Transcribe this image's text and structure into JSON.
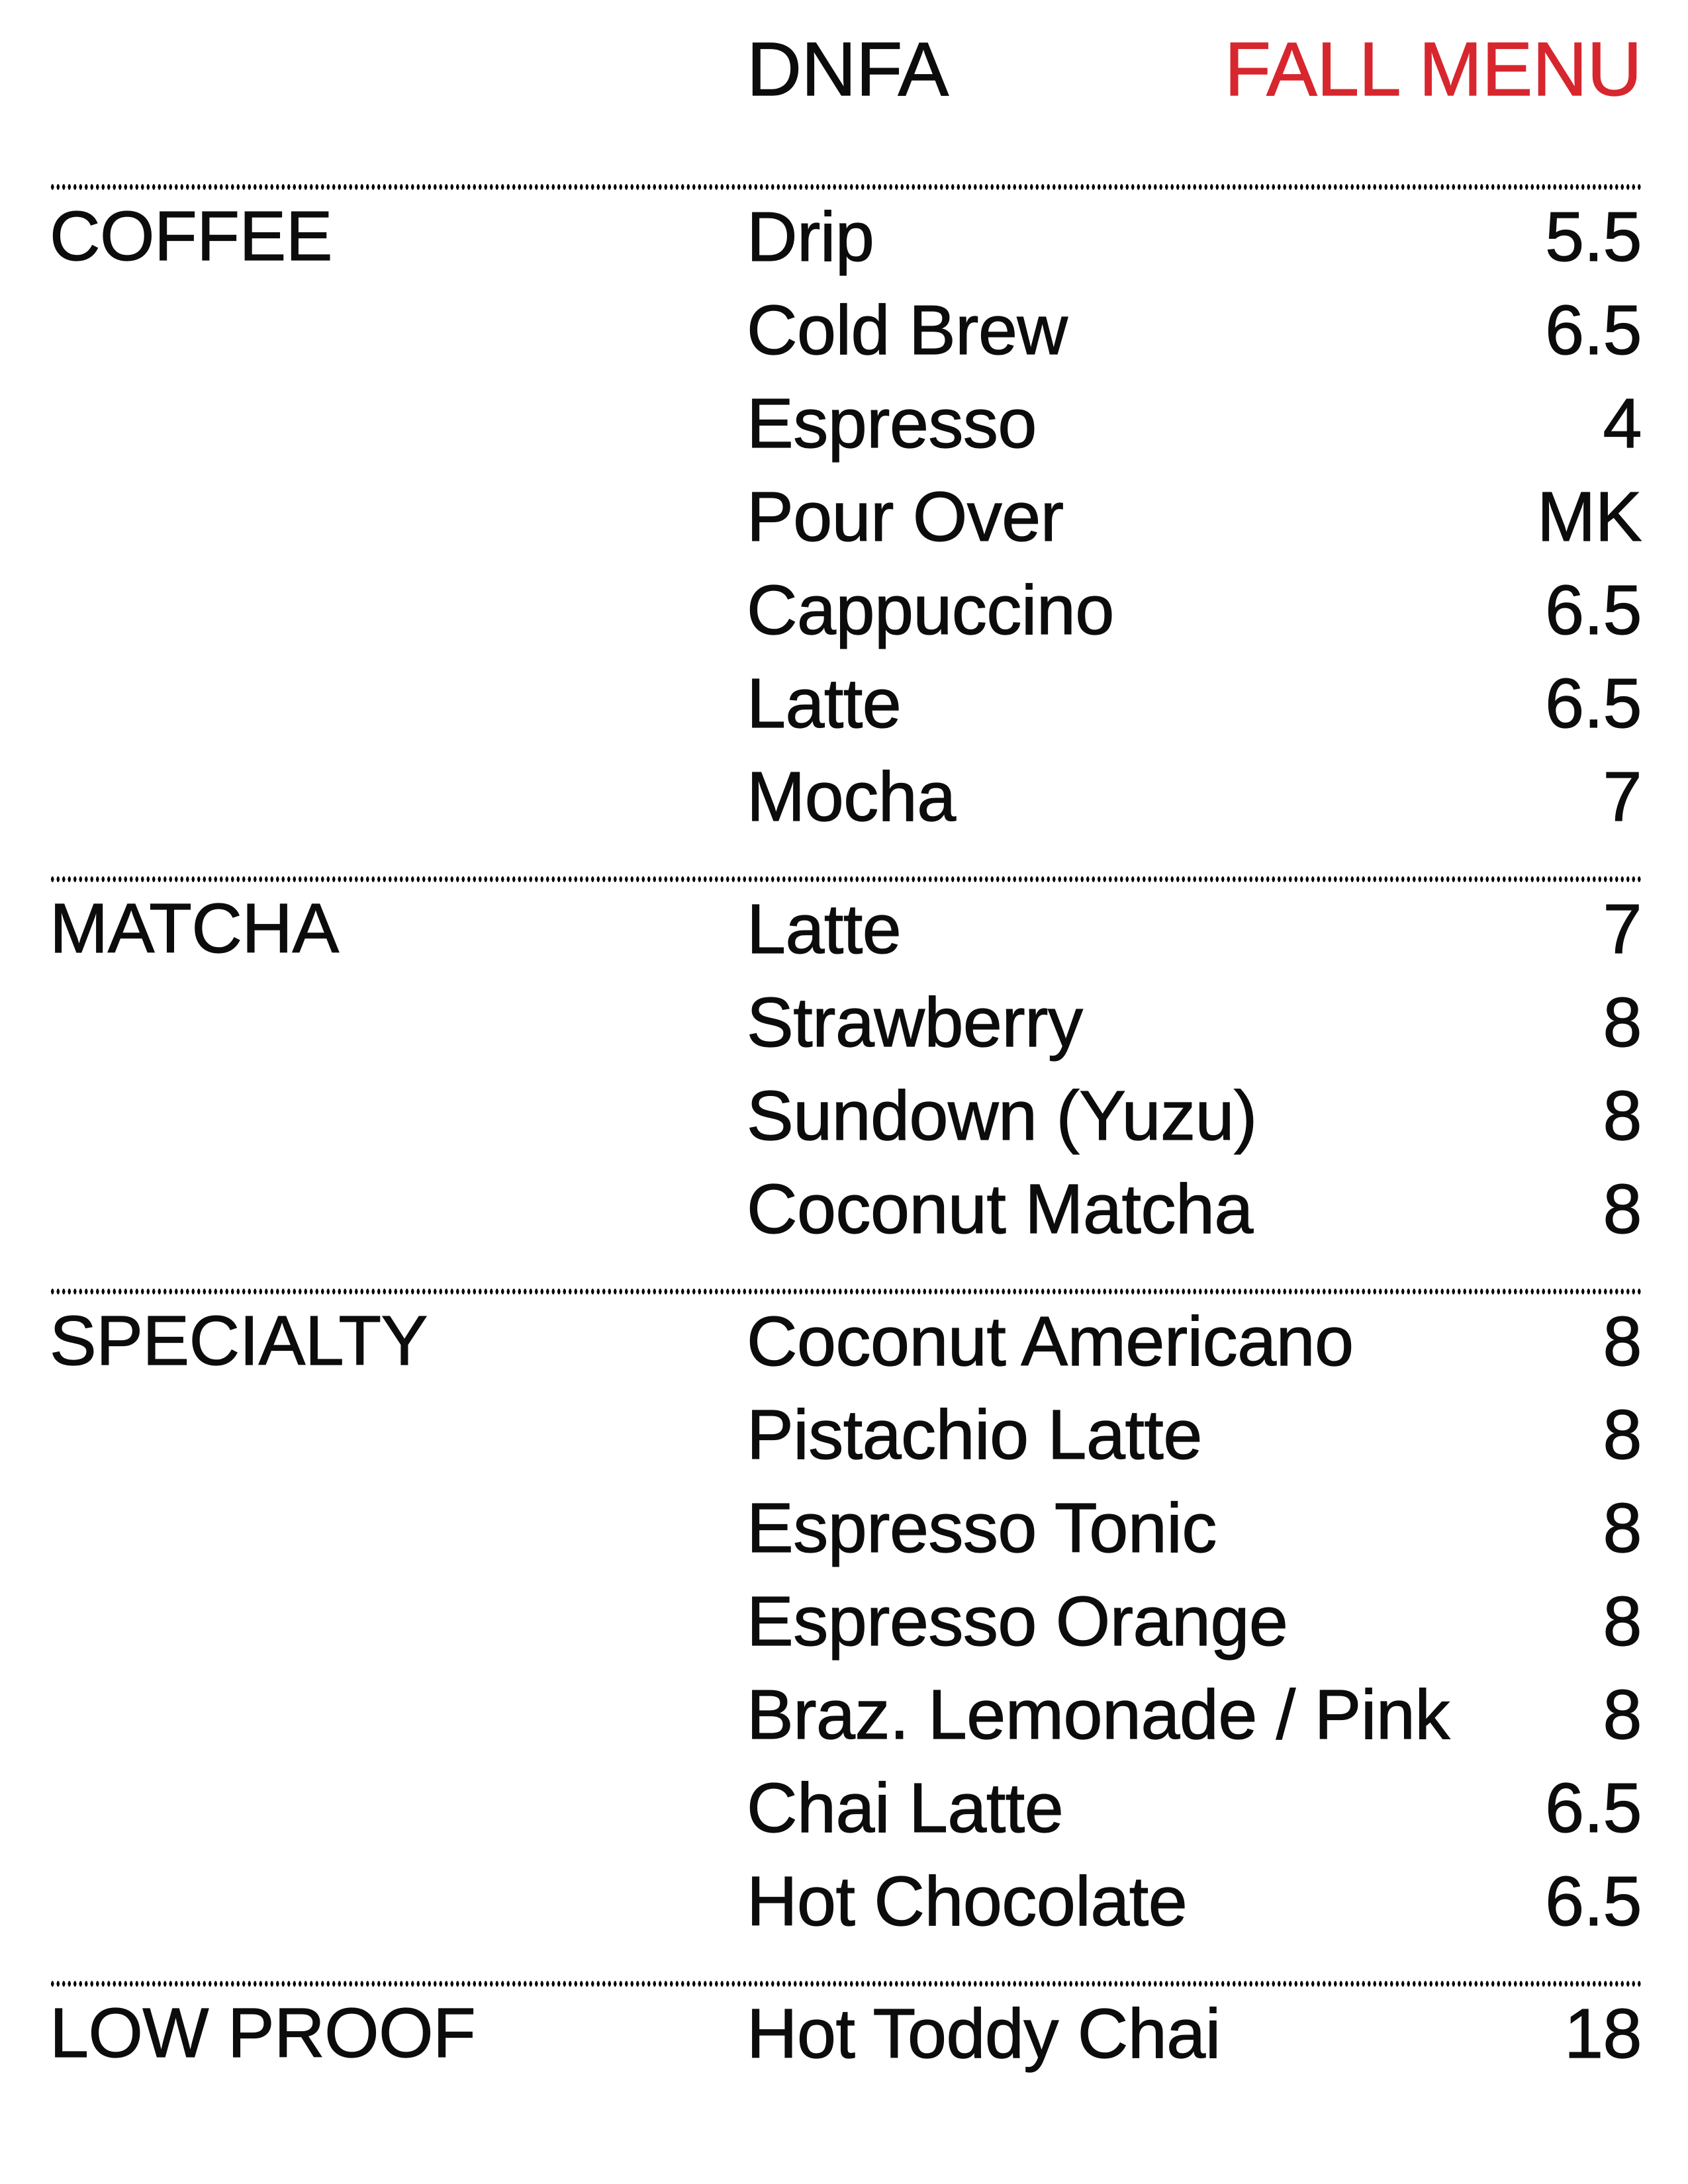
{
  "page": {
    "background": "#ffffff",
    "ink_color": "#0c0c0c",
    "accent_red": "#d7262e"
  },
  "header": {
    "brand": "DNFA",
    "title": "FALL MENU"
  },
  "sections": [
    {
      "label": "COFFEE",
      "items": [
        {
          "name": "Drip",
          "price": "5.5"
        },
        {
          "name": "Cold Brew",
          "price": "6.5"
        },
        {
          "name": "Espresso",
          "price": "4"
        },
        {
          "name": "Pour Over",
          "price": "MK"
        },
        {
          "name": "Cappuccino",
          "price": "6.5"
        },
        {
          "name": "Latte",
          "price": "6.5"
        },
        {
          "name": "Mocha",
          "price": "7"
        }
      ]
    },
    {
      "label": "MATCHA",
      "items": [
        {
          "name": "Latte",
          "price": "7"
        },
        {
          "name": "Strawberry",
          "price": "8"
        },
        {
          "name": "Sundown (Yuzu)",
          "price": "8"
        },
        {
          "name": "Coconut Matcha",
          "price": "8"
        }
      ]
    },
    {
      "label": "SPECIALTY",
      "items": [
        {
          "name": "Coconut Americano",
          "price": "8"
        },
        {
          "name": "Pistachio Latte",
          "price": "8"
        },
        {
          "name": "Espresso Tonic",
          "price": "8"
        },
        {
          "name": "Espresso Orange",
          "price": "8"
        },
        {
          "name": "Braz. Lemonade / Pink",
          "price": "8"
        },
        {
          "name": "Chai Latte",
          "price": "6.5"
        },
        {
          "name": "Hot Chocolate",
          "price": "6.5"
        }
      ]
    },
    {
      "label": "LOW PROOF",
      "items": [
        {
          "name": "Hot Toddy Chai",
          "price": "18"
        }
      ]
    }
  ]
}
